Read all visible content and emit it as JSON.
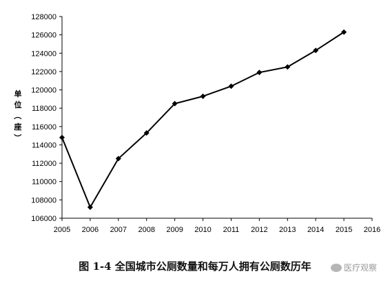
{
  "chart_data": {
    "type": "line",
    "x": [
      2005,
      2006,
      2007,
      2008,
      2009,
      2010,
      2011,
      2012,
      2013,
      2014,
      2015
    ],
    "series": [
      {
        "values": [
          114800,
          107200,
          112500,
          115300,
          118500,
          119300,
          120400,
          121900,
          122500,
          124300,
          126300
        ]
      }
    ],
    "xticks": [
      "2005",
      "2006",
      "2007",
      "2008",
      "2009",
      "2010",
      "2011",
      "2012",
      "2013",
      "2014",
      "2015",
      "2016"
    ],
    "yticks": [
      "106000",
      "108000",
      "110000",
      "112000",
      "114000",
      "116000",
      "118000",
      "120000",
      "122000",
      "124000",
      "126000",
      "128000"
    ],
    "xlim": [
      2005,
      2016
    ],
    "ylim": [
      106000,
      128000
    ],
    "ylabel": "单位（座）",
    "title": "图 1-4 全国城市公厕数量和每万人拥有公厕数历年",
    "grid": false,
    "marker": "diamond",
    "line_color": "#000000"
  },
  "watermark": {
    "text": "医疗观察"
  }
}
